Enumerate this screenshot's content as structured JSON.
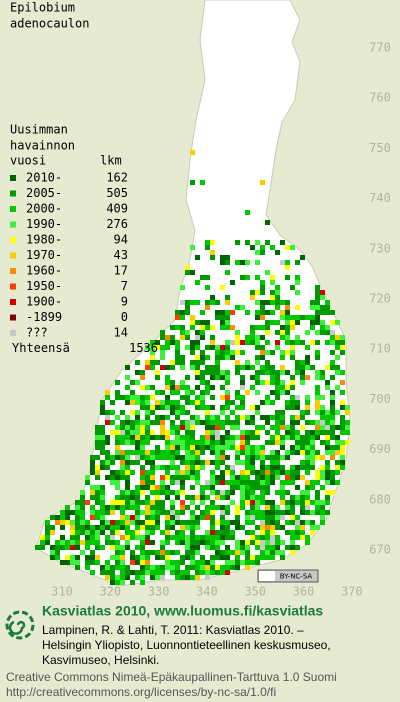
{
  "title": [
    "Epilobium",
    "adenocaulon"
  ],
  "legend": {
    "heading": [
      "Uusimman",
      "havainnon",
      "vuosi"
    ],
    "count_header": "lkm",
    "items": [
      {
        "label": "2010-",
        "count": 162,
        "color": "#006400"
      },
      {
        "label": "2005-",
        "count": 505,
        "color": "#009a00"
      },
      {
        "label": "2000-",
        "count": 409,
        "color": "#00c800"
      },
      {
        "label": "1990-",
        "count": 276,
        "color": "#3cf03c"
      },
      {
        "label": "1980-",
        "count": 94,
        "color": "#ffff00"
      },
      {
        "label": "1970-",
        "count": 43,
        "color": "#ffcc00"
      },
      {
        "label": "1960-",
        "count": 17,
        "color": "#ff8c00"
      },
      {
        "label": "1950-",
        "count": 7,
        "color": "#ff3c00"
      },
      {
        "label": "1900-",
        "count": 9,
        "color": "#d00000"
      },
      {
        "label": "-1899",
        "count": 0,
        "color": "#800000"
      },
      {
        "label": "???",
        "count": 14,
        "color": "#c8c8c8"
      }
    ],
    "total_label": "Yhteensä",
    "total": 1536
  },
  "map": {
    "yticks": [
      770,
      760,
      750,
      740,
      730,
      720,
      710,
      700,
      690,
      680,
      670
    ],
    "xticks": [
      310,
      320,
      330,
      340,
      350,
      360,
      370
    ],
    "license_badge": "BY-NC-SA"
  },
  "footer": {
    "brand": "Kasviatlas 2010, www.luomus.fi/kasviatlas",
    "citation": [
      "Lampinen, R. & Lahti, T. 2011: Kasviatlas 2010. –",
      "Helsingin Yliopisto, Luonnontieteellinen keskusmuseo,",
      "Kasvimuseo, Helsinki."
    ],
    "license": [
      "Creative Commons Nimeä-Epäkaupallinen-Tarttuva 1.0 Suomi",
      "http://creativecommons.org/licenses/by-nc-sa/1.0/fi"
    ]
  }
}
